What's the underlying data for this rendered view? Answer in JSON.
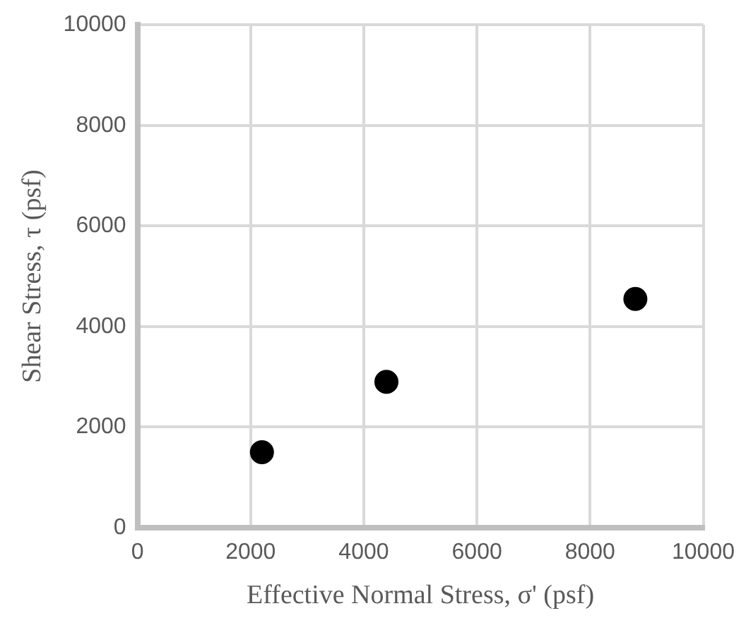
{
  "chart_data": {
    "type": "scatter",
    "xlabel": "Effective Normal Stress, σ' (psf)",
    "ylabel": "Shear Stress, τ (psf)",
    "x": [
      2200,
      4400,
      8800
    ],
    "values": [
      1500,
      2900,
      4550
    ],
    "color": "#000000",
    "marker": "circle",
    "xlim": [
      0,
      10000
    ],
    "xticks": [
      0,
      2000,
      4000,
      6000,
      8000,
      10000
    ],
    "ylim": [
      0,
      10000
    ],
    "yticks": [
      0,
      2000,
      4000,
      6000,
      8000,
      10000
    ],
    "grid": true,
    "legend": false
  }
}
